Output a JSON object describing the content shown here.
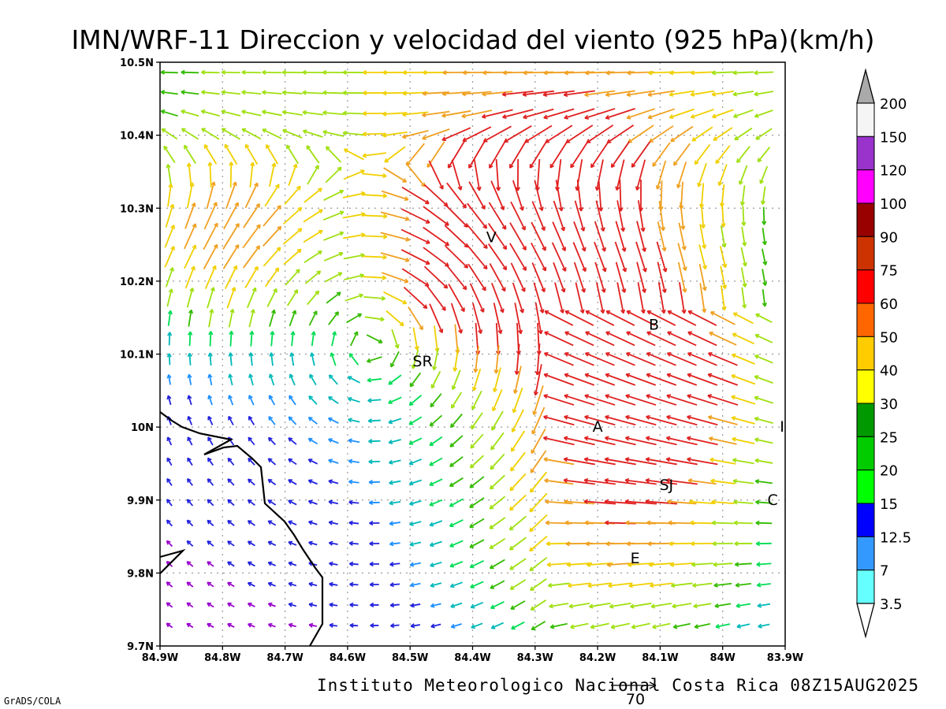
{
  "title": "IMN/WRF-11 Direccion y velocidad del viento (925 hPa)(km/h)",
  "footer": {
    "institution": "Instituto Meteorologico Nacional Costa Rica 08Z15AUG2025",
    "software": "GrADS/COLA",
    "reference_vector_label": "70"
  },
  "axes": {
    "x_ticks": [
      "84.9W",
      "84.8W",
      "84.7W",
      "84.6W",
      "84.5W",
      "84.4W",
      "84.3W",
      "84.2W",
      "84.1W",
      "84W",
      "83.9W"
    ],
    "y_ticks": [
      "10.5N",
      "10.4N",
      "10.3N",
      "10.2N",
      "10.1N",
      "10N",
      "9.9N",
      "9.8N",
      "9.7N"
    ],
    "lon_range": [
      -84.9,
      -83.9
    ],
    "lat_range": [
      9.7,
      10.5
    ]
  },
  "places": [
    {
      "label": "V",
      "lon": -84.37,
      "lat": 10.26
    },
    {
      "label": "B",
      "lon": -84.11,
      "lat": 10.14
    },
    {
      "label": "SR",
      "lon": -84.48,
      "lat": 10.09
    },
    {
      "label": "A",
      "lon": -84.2,
      "lat": 10.0
    },
    {
      "label": "SJ",
      "lon": -84.09,
      "lat": 9.92
    },
    {
      "label": "C",
      "lon": -83.92,
      "lat": 9.9
    },
    {
      "label": "E",
      "lon": -84.14,
      "lat": 9.82
    },
    {
      "label": "I",
      "lon": -83.905,
      "lat": 10.0
    }
  ],
  "colorbar": {
    "labels": [
      "200",
      "150",
      "120",
      "100",
      "90",
      "75",
      "60",
      "50",
      "40",
      "30",
      "25",
      "20",
      "15",
      "12.5",
      "7",
      "3.5"
    ],
    "colors": [
      "#f5f5f5",
      "#9933cc",
      "#ff00ff",
      "#990000",
      "#cc3300",
      "#ff0000",
      "#ff6600",
      "#ffcc00",
      "#ffff00",
      "#009900",
      "#00cc00",
      "#00ff00",
      "#0000ff",
      "#3399ff",
      "#66ffff"
    ],
    "top_arrow_color": "#aaaaaa",
    "bottom_arrow_color": "#ffffff"
  }
}
